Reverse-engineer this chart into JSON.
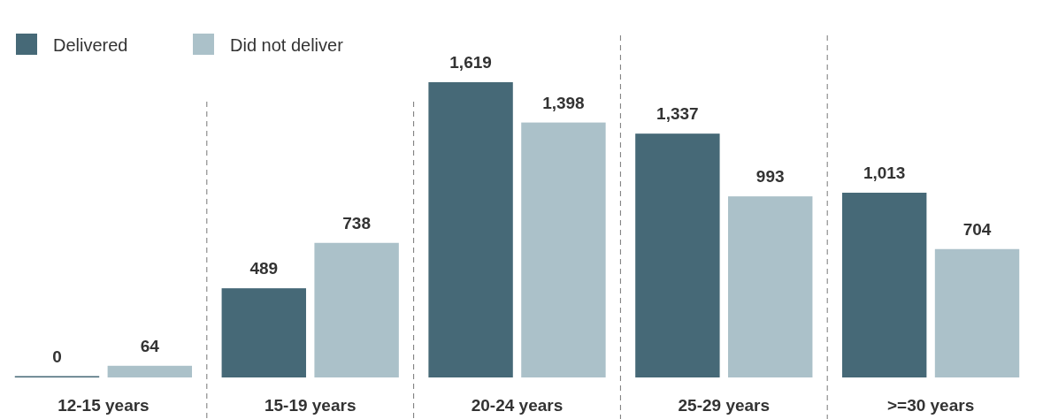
{
  "chart_data": {
    "type": "bar",
    "categories": [
      "12-15 years",
      "15-19 years",
      "20-24 years",
      "25-29 years",
      ">=30 years"
    ],
    "series": [
      {
        "name": "Delivered",
        "color": "#466977",
        "values": [
          0,
          489,
          1619,
          1337,
          1013
        ],
        "value_labels": [
          "0",
          "489",
          "1,619",
          "1,337",
          "1,013"
        ]
      },
      {
        "name": "Did not deliver",
        "color": "#abc1c9",
        "values": [
          64,
          738,
          1398,
          993,
          704
        ],
        "value_labels": [
          "64",
          "738",
          "1,398",
          "993",
          "704"
        ]
      }
    ],
    "legend": "top left",
    "grid": false
  }
}
